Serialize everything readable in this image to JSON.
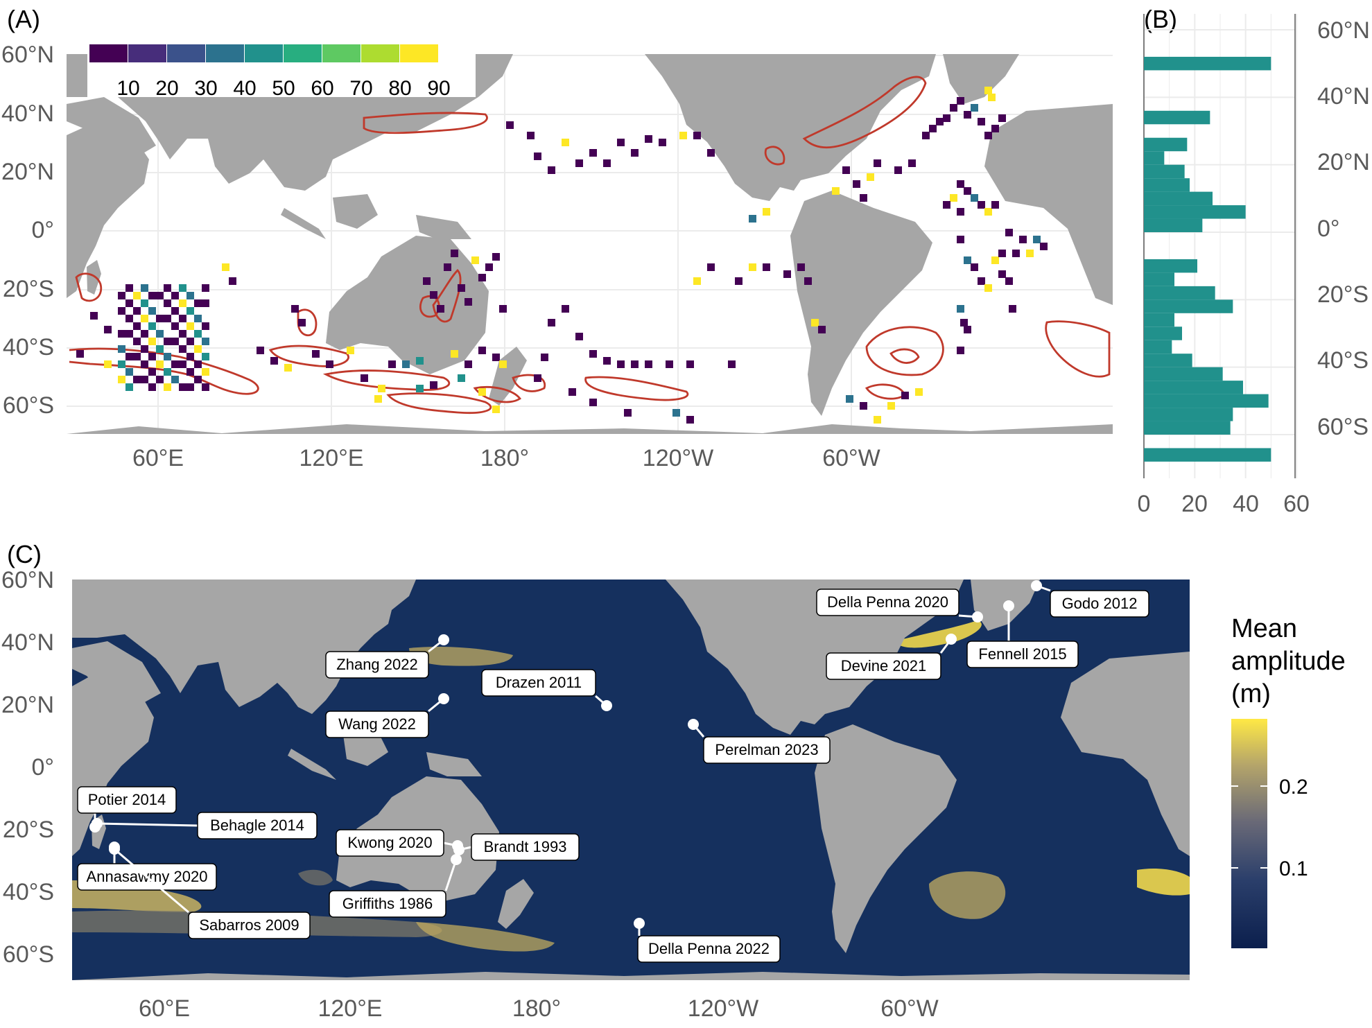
{
  "panel_labels": {
    "a": "(A)",
    "b": "(B)",
    "c": "(C)"
  },
  "colors": {
    "land": "#a6a6a6",
    "grid": "#ebebeb",
    "ocean_c": "#15305e",
    "contour": "#c0392b",
    "histogram": "#21918c",
    "viridis": [
      "#440154",
      "#472d7b",
      "#3b528b",
      "#2c728e",
      "#21918c",
      "#28ae80",
      "#5ec962",
      "#addc30",
      "#fde725"
    ],
    "cividis": [
      "#0b1f4d",
      "#39476e",
      "#69697a",
      "#a39a71",
      "#ffe945"
    ]
  },
  "panel_a": {
    "lat_labels": [
      "60°N",
      "40°N",
      "20°N",
      "0°",
      "20°S",
      "40°S",
      "60°S"
    ],
    "lon_labels": [
      "60°E",
      "120°E",
      "180°",
      "120°W",
      "60°W"
    ],
    "legend_values": [
      "10",
      "20",
      "30",
      "40",
      "50",
      "60",
      "70",
      "80",
      "90"
    ]
  },
  "panel_b": {
    "lat_labels": [
      "60°N",
      "40°N",
      "20°N",
      "0°",
      "20°S",
      "40°S",
      "60°S"
    ],
    "x_ticks": [
      "0",
      "20",
      "40",
      "60"
    ]
  },
  "panel_c": {
    "lat_labels": [
      "60°N",
      "40°N",
      "20°N",
      "0°",
      "20°S",
      "40°S",
      "60°S"
    ],
    "lon_labels": [
      "60°E",
      "120°E",
      "180°",
      "120°W",
      "60°W"
    ],
    "colorbar_title": [
      "Mean",
      "amplitude",
      "(m)"
    ],
    "colorbar_ticks": [
      "0.2",
      "0.1"
    ],
    "studies": [
      "Zhang 2022",
      "Wang 2022",
      "Drazen 2011",
      "Perelman 2023",
      "Della Penna 2020",
      "Godo 2012",
      "Devine 2021",
      "Fennell 2015",
      "Potier 2014",
      "Behagle 2014",
      "Annasawmy 2020",
      "Sabarros 2009",
      "Kwong 2020",
      "Brandt 1993",
      "Griffiths 1986",
      "Della Penna 2022"
    ]
  },
  "chart_data": {
    "type": "bar",
    "orientation": "horizontal",
    "title": "",
    "xlabel": "",
    "ylabel": "",
    "xlim": [
      0,
      60
    ],
    "ylim": [
      -70,
      65
    ],
    "lat_bin_center": [
      50,
      46,
      42,
      38,
      34,
      30,
      26,
      22,
      18,
      14,
      10,
      6,
      2,
      -2,
      -6,
      -10,
      -14,
      -18,
      -22,
      -26,
      -30,
      -34,
      -38,
      -42,
      -46,
      -50,
      -54,
      -58,
      -62,
      -66
    ],
    "values": [
      50,
      0,
      0,
      0,
      26,
      0,
      17,
      8,
      16,
      18,
      27,
      40,
      23,
      0,
      0,
      21,
      12,
      28,
      35,
      12,
      15,
      11,
      19,
      31,
      39,
      49,
      35,
      34,
      0,
      50
    ]
  }
}
